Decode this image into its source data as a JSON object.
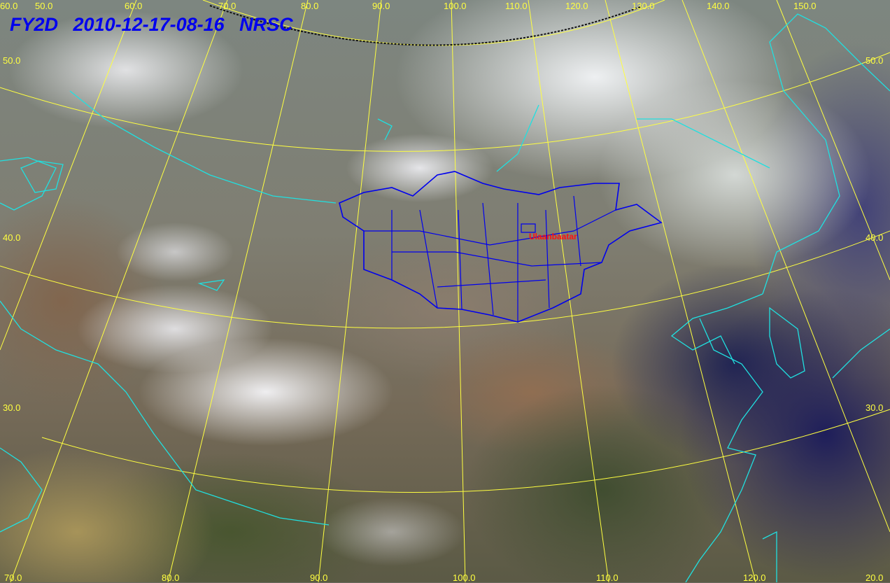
{
  "title": "FY2D   2010-12-17-08-16  NRSC",
  "city_label": "Ulaanbaatar",
  "colors": {
    "grid": "#ffff40",
    "coastline": "#20e0e0",
    "mongolia_border": "#0000ee",
    "title": "#0000ee",
    "city": "#ff1010"
  },
  "top_labels": [
    "60.0",
    "50.0",
    "60.0",
    "70.0",
    "80.0",
    "90.0",
    "100.0",
    "110.0",
    "120.0",
    "130.0",
    "140.0",
    "150.0"
  ],
  "left_labels": [
    "50.0",
    "40.0",
    "30.0"
  ],
  "right_labels": [
    "50.0",
    "40.0",
    "30.0",
    "20.0"
  ],
  "bottom_labels": [
    "70.0",
    "80.0",
    "90.0",
    "100.0",
    "110.0",
    "120.0"
  ]
}
